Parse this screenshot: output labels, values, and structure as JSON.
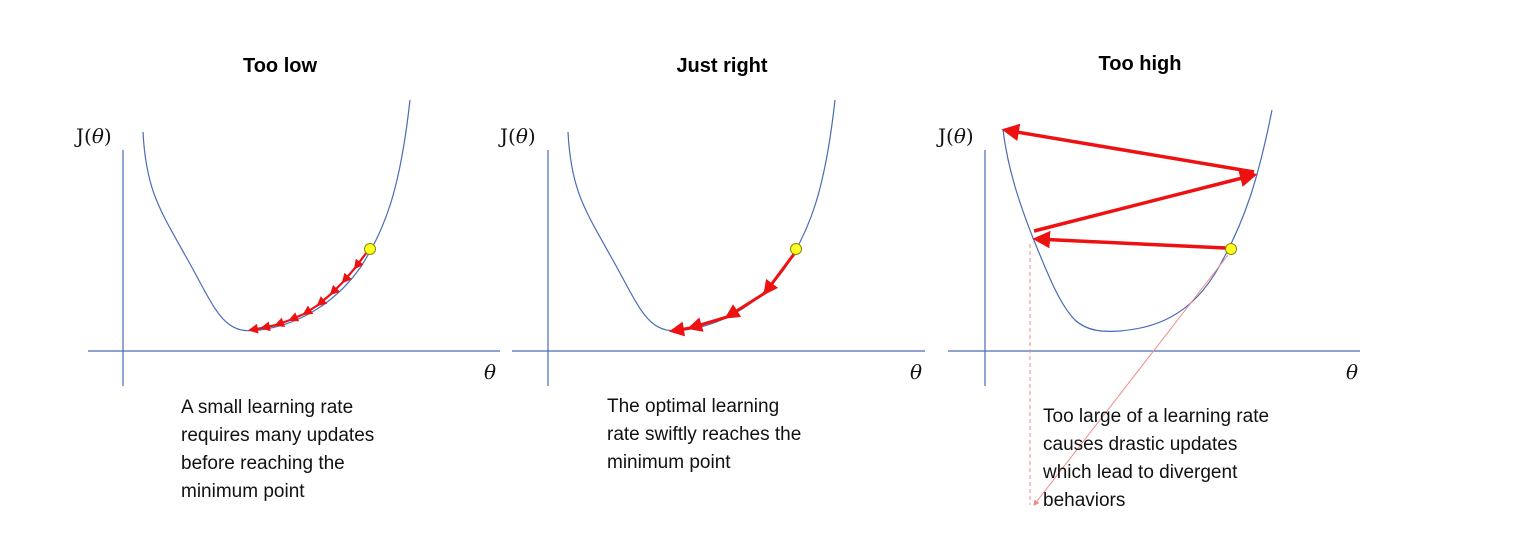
{
  "panels": [
    {
      "title": "Too low",
      "ylabel_prefix": "J(",
      "ylabel_var": "θ",
      "ylabel_suffix": ")",
      "xlabel": "θ",
      "caption": [
        "A small learning rate",
        "requires many updates",
        "before reaching the",
        "minimum point"
      ]
    },
    {
      "title": "Just right",
      "ylabel_prefix": "J(",
      "ylabel_var": "θ",
      "ylabel_suffix": ")",
      "xlabel": "θ",
      "caption": [
        "The optimal learning",
        "rate swiftly reaches the",
        "minimum point"
      ]
    },
    {
      "title": "Too high",
      "ylabel_prefix": "J(",
      "ylabel_var": "θ",
      "ylabel_suffix": ")",
      "xlabel": "θ",
      "caption": [
        "Too large of a learning rate",
        "causes drastic updates",
        "which lead to divergent",
        "behaviors"
      ]
    }
  ],
  "colors": {
    "curve": "#4a6bb5",
    "axis": "#4a6bb5",
    "arrow": "#ee1111",
    "point_fill": "#ffff22",
    "point_stroke": "#888800",
    "guide": "#f08a8a"
  }
}
